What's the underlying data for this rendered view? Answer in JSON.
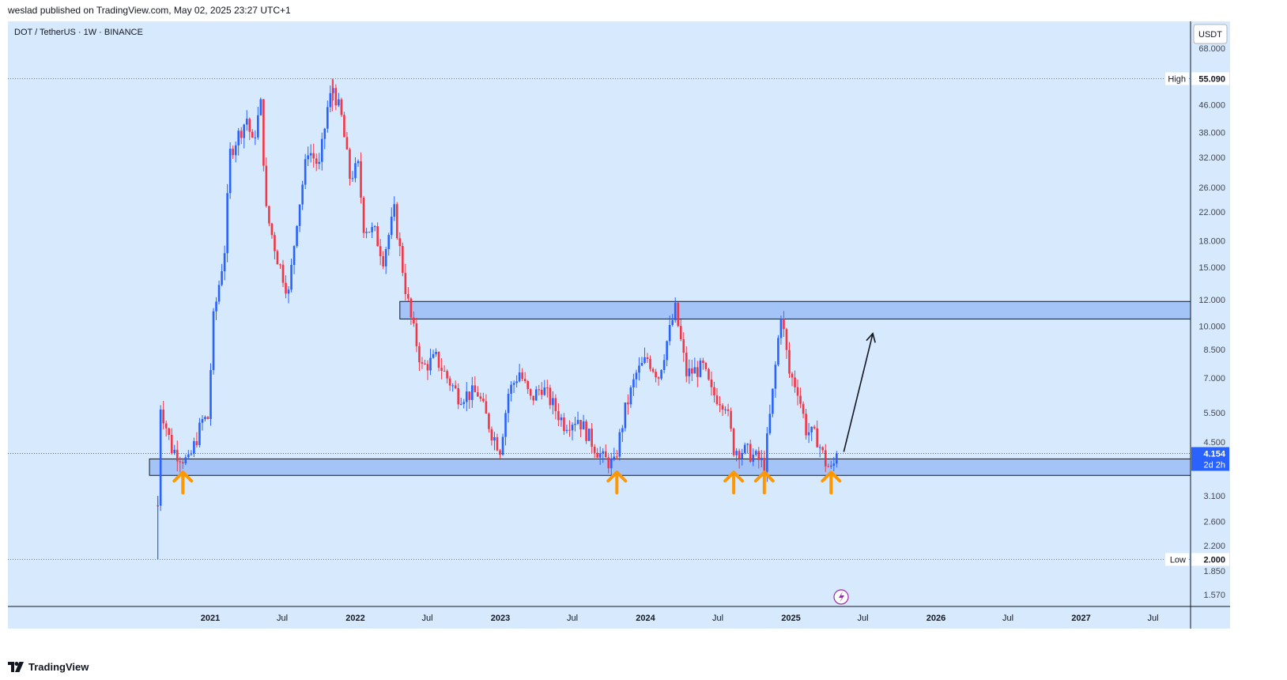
{
  "header": {
    "publisher_line": "weslad published on TradingView.com, May 02, 2025 23:27 UTC+1"
  },
  "legend": {
    "symbol_line": "DOT / TetherUS · 1W · BINANCE"
  },
  "price_axis": {
    "currency": "USDT",
    "ticks": [
      "68.000",
      "46.000",
      "38.000",
      "32.000",
      "26.000",
      "22.000",
      "18.000",
      "15.000",
      "12.000",
      "10.000",
      "8.500",
      "7.000",
      "5.500",
      "4.500",
      "3.100",
      "2.600",
      "2.200",
      "1.850",
      "1.570"
    ],
    "high_label": "High",
    "high_value": "55.090",
    "low_label": "Low",
    "low_value": "2.000",
    "current_price": "4.154",
    "countdown": "2d 2h"
  },
  "time_axis": {
    "labels": [
      "2021",
      "Jul",
      "2022",
      "Jul",
      "2023",
      "Jul",
      "2024",
      "Jul",
      "2025",
      "Jul",
      "2026",
      "Jul",
      "2027",
      "Jul"
    ]
  },
  "footer": {
    "brand": "TradingView"
  },
  "colors": {
    "background": "#d6e9fd",
    "up": "#2962ff",
    "down": "#f23645",
    "zone_fill": "#a4c4f8",
    "arrow_orange": "#ff9800",
    "price_tag": "#2962ff"
  },
  "chart_data": {
    "type": "candlestick",
    "symbol": "DOT / TetherUS",
    "interval": "1W",
    "exchange": "BINANCE",
    "scale": "log",
    "ylim": [
      1.4,
      72
    ],
    "x_range": [
      "2020-08",
      "2027-10"
    ],
    "price_points": [
      [
        "2020-08-22",
        2.9
      ],
      [
        "2020-08-29",
        5.8
      ],
      [
        "2020-09-26",
        4.3
      ],
      [
        "2020-11-07",
        3.9
      ],
      [
        "2020-12-12",
        5.2
      ],
      [
        "2020-12-26",
        5.3
      ],
      [
        "2021-01-09",
        10.5
      ],
      [
        "2021-02-06",
        17
      ],
      [
        "2021-02-20",
        33
      ],
      [
        "2021-03-06",
        36
      ],
      [
        "2021-04-03",
        42
      ],
      [
        "2021-04-17",
        35
      ],
      [
        "2021-05-08",
        46
      ],
      [
        "2021-05-22",
        22
      ],
      [
        "2021-06-19",
        16
      ],
      [
        "2021-07-17",
        12.5
      ],
      [
        "2021-08-07",
        21
      ],
      [
        "2021-09-04",
        34
      ],
      [
        "2021-10-02",
        30
      ],
      [
        "2021-10-23",
        45
      ],
      [
        "2021-11-06",
        52
      ],
      [
        "2021-11-27",
        42
      ],
      [
        "2021-12-18",
        28
      ],
      [
        "2022-01-08",
        30
      ],
      [
        "2022-01-22",
        20
      ],
      [
        "2022-02-19",
        19
      ],
      [
        "2022-03-12",
        16
      ],
      [
        "2022-04-09",
        22
      ],
      [
        "2022-05-07",
        13
      ],
      [
        "2022-05-21",
        10.5
      ],
      [
        "2022-06-18",
        7.5
      ],
      [
        "2022-07-23",
        8.0
      ],
      [
        "2022-08-20",
        7.0
      ],
      [
        "2022-09-17",
        6.2
      ],
      [
        "2022-11-05",
        6.3
      ],
      [
        "2022-12-10",
        4.8
      ],
      [
        "2022-12-31",
        4.3
      ],
      [
        "2023-01-21",
        6.3
      ],
      [
        "2023-02-18",
        7.3
      ],
      [
        "2023-03-18",
        6.0
      ],
      [
        "2023-04-15",
        6.6
      ],
      [
        "2023-06-10",
        5.1
      ],
      [
        "2023-07-15",
        5.3
      ],
      [
        "2023-08-19",
        4.5
      ],
      [
        "2023-09-16",
        4.0
      ],
      [
        "2023-10-14",
        3.85
      ],
      [
        "2023-11-11",
        5.6
      ],
      [
        "2023-12-09",
        7.2
      ],
      [
        "2024-01-06",
        8.0
      ],
      [
        "2024-02-03",
        7.1
      ],
      [
        "2024-02-24",
        9.0
      ],
      [
        "2024-03-16",
        11.2
      ],
      [
        "2024-04-13",
        7.2
      ],
      [
        "2024-05-25",
        7.5
      ],
      [
        "2024-06-15",
        6.3
      ],
      [
        "2024-07-20",
        5.9
      ],
      [
        "2024-08-10",
        4.3
      ],
      [
        "2024-09-14",
        4.2
      ],
      [
        "2024-10-26",
        3.85
      ],
      [
        "2024-11-16",
        6.3
      ],
      [
        "2024-12-07",
        11.0
      ],
      [
        "2024-12-28",
        7.2
      ],
      [
        "2025-01-18",
        6.5
      ],
      [
        "2025-02-08",
        4.9
      ],
      [
        "2025-03-08",
        4.6
      ],
      [
        "2025-03-29",
        3.9
      ],
      [
        "2025-04-12",
        3.7
      ],
      [
        "2025-05-02",
        4.154
      ]
    ],
    "high": {
      "label": "High",
      "value": 55.09,
      "date": "2021-11-04"
    },
    "low": {
      "label": "Low",
      "value": 2.0,
      "date": "2020-08-22"
    },
    "last_price": 4.154,
    "zones": [
      {
        "label": "resistance",
        "from": 10.5,
        "to": 11.85,
        "start": "2022-04-23"
      },
      {
        "label": "support",
        "from": 3.57,
        "to": 4.0,
        "start": "2020-08-01"
      }
    ],
    "support_touch_arrows": [
      "2020-10-24",
      "2023-10-21",
      "2024-08-10",
      "2024-10-26",
      "2025-04-12"
    ],
    "projection_arrow": {
      "from": [
        "2025-05-02",
        4.2
      ],
      "to": [
        "2025-07-26",
        9.5
      ]
    },
    "grid": false,
    "legend": "top-left"
  }
}
